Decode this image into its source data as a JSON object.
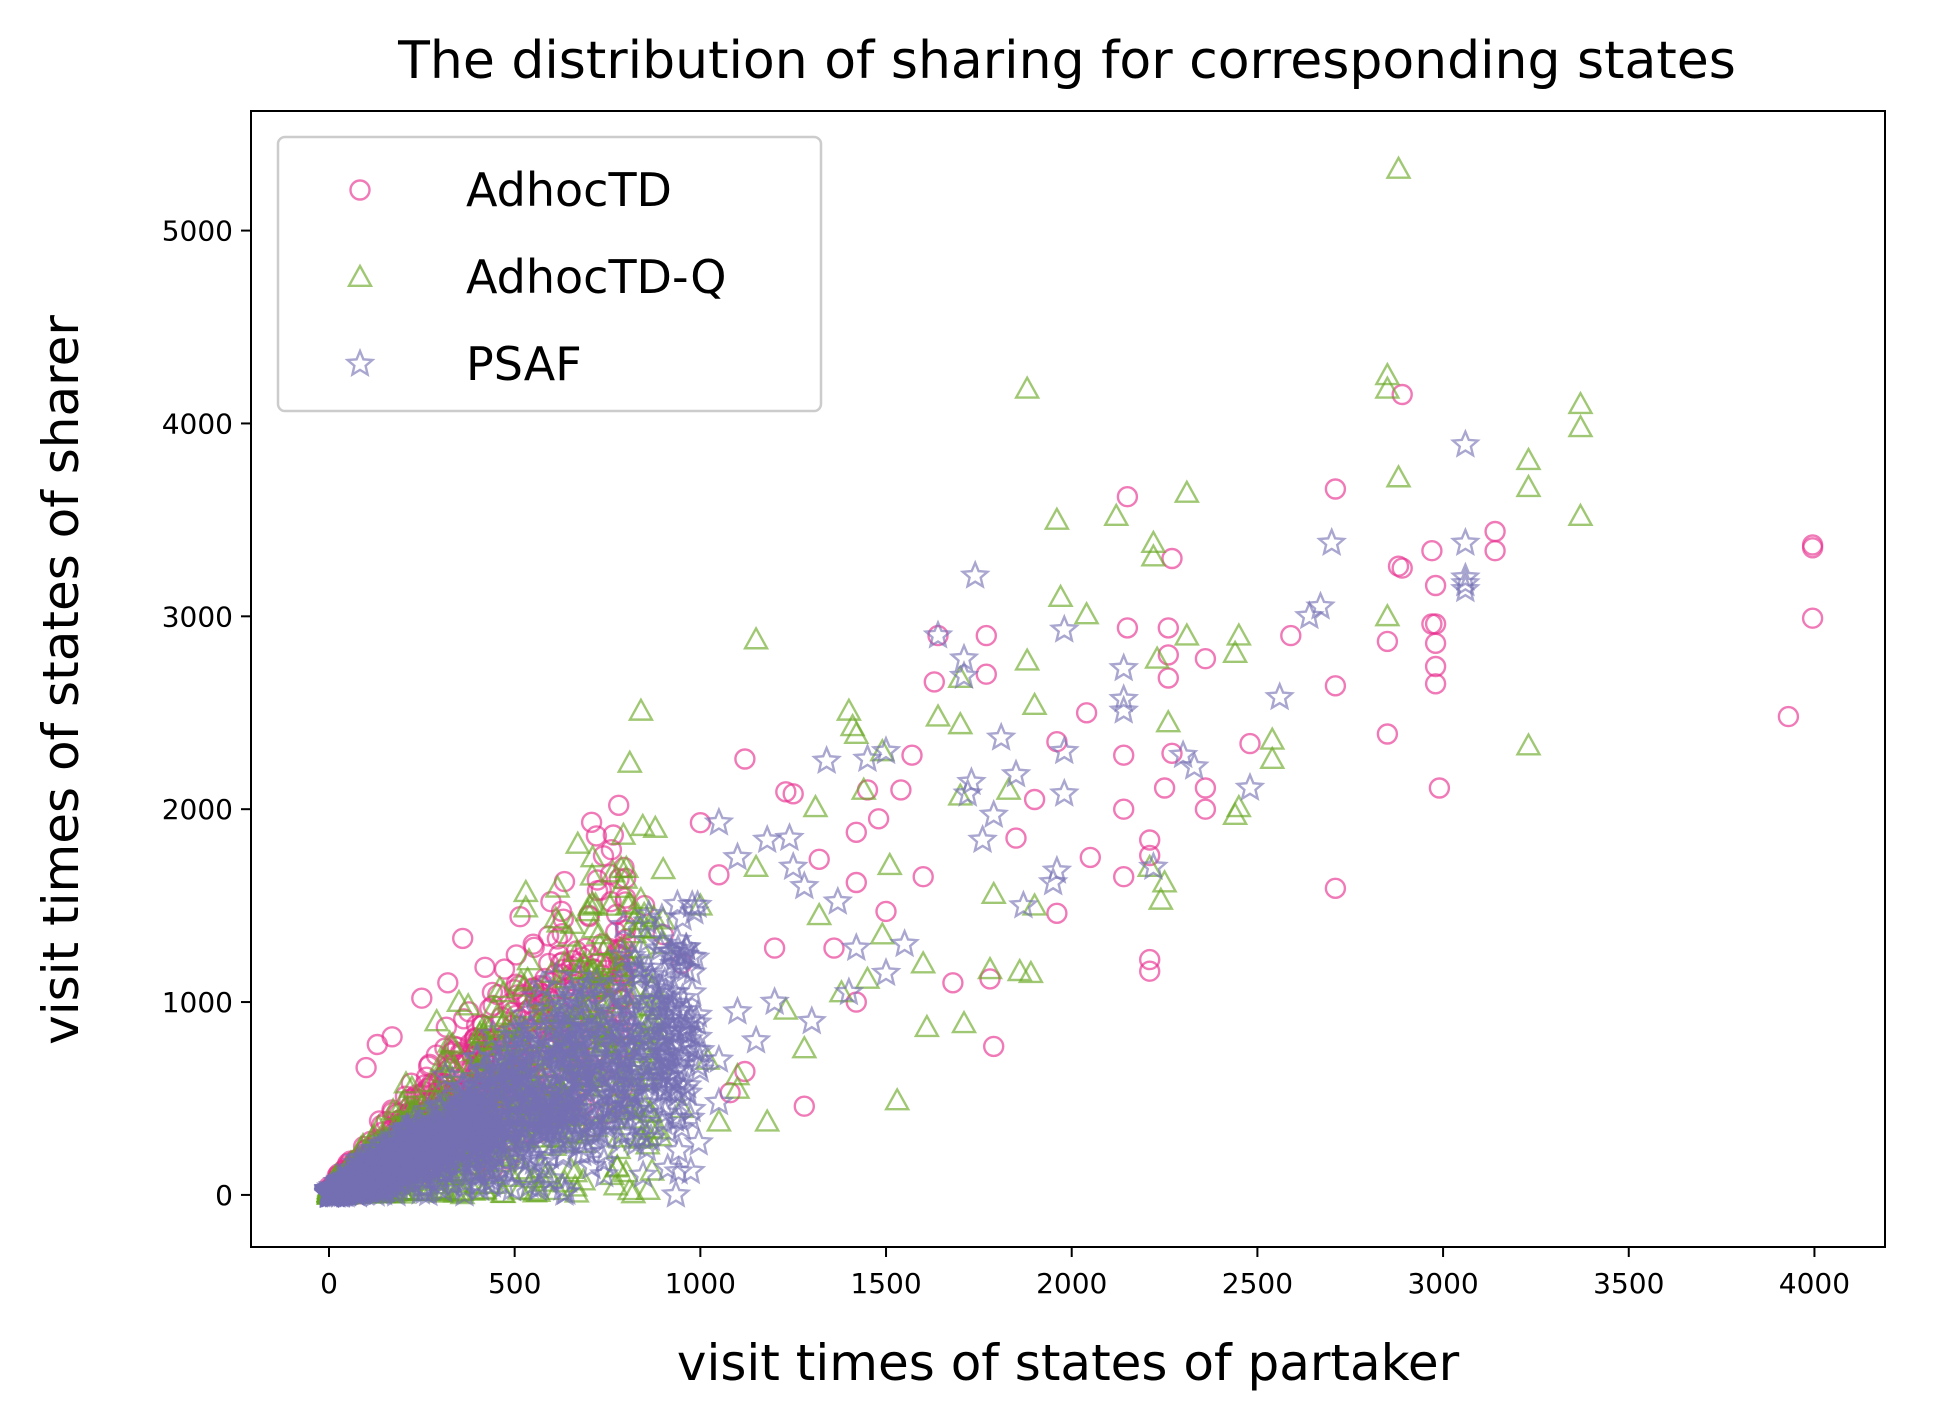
{
  "chart_data": {
    "type": "scatter",
    "title": "The distribution of sharing for corresponding states",
    "xlabel": "visit times of states of partaker",
    "ylabel": "visit times of states of sharer",
    "xlim": [
      -210,
      4190
    ],
    "ylim": [
      -270,
      5620
    ],
    "xticks": [
      0,
      500,
      1000,
      1500,
      2000,
      2500,
      3000,
      3500,
      4000
    ],
    "yticks": [
      0,
      1000,
      2000,
      3000,
      4000,
      5000
    ],
    "xtick_labels": [
      "0",
      "500",
      "1000",
      "1500",
      "2000",
      "2500",
      "3000",
      "3500",
      "4000"
    ],
    "ytick_labels": [
      "0",
      "1000",
      "2000",
      "3000",
      "4000",
      "5000"
    ],
    "grid": false,
    "legend_position": "top-left",
    "series": [
      {
        "name": "AdhocTD",
        "marker": "circle",
        "color": "#e7298a",
        "dense_cluster": {
          "x_range": [
            0,
            800
          ],
          "ratio": 1.5,
          "spread": 0.45,
          "count": 900
        },
        "points": [
          [
            3995,
            3370
          ],
          [
            3995,
            3355
          ],
          [
            3995,
            2990
          ],
          [
            3930,
            2480
          ],
          [
            3140,
            3440
          ],
          [
            3140,
            3340
          ],
          [
            2970,
            3340
          ],
          [
            2980,
            3160
          ],
          [
            2980,
            2960
          ],
          [
            2970,
            2960
          ],
          [
            2980,
            2860
          ],
          [
            2980,
            2740
          ],
          [
            2980,
            2650
          ],
          [
            2990,
            2110
          ],
          [
            2890,
            4150
          ],
          [
            2890,
            3250
          ],
          [
            2880,
            3260
          ],
          [
            2850,
            2870
          ],
          [
            2850,
            2390
          ],
          [
            2710,
            3660
          ],
          [
            2710,
            2640
          ],
          [
            2710,
            1590
          ],
          [
            2590,
            2900
          ],
          [
            2480,
            2340
          ],
          [
            2360,
            2780
          ],
          [
            2360,
            2110
          ],
          [
            2360,
            2000
          ],
          [
            2270,
            3300
          ],
          [
            2260,
            2940
          ],
          [
            2260,
            2800
          ],
          [
            2260,
            2680
          ],
          [
            2270,
            2290
          ],
          [
            2250,
            2110
          ],
          [
            2210,
            1840
          ],
          [
            2210,
            1760
          ],
          [
            2210,
            1220
          ],
          [
            2210,
            1160
          ],
          [
            2150,
            3620
          ],
          [
            2150,
            2940
          ],
          [
            2140,
            2280
          ],
          [
            2140,
            2000
          ],
          [
            2140,
            1650
          ],
          [
            2040,
            2500
          ],
          [
            2050,
            1750
          ],
          [
            1960,
            2350
          ],
          [
            1960,
            1460
          ],
          [
            1770,
            2900
          ],
          [
            1770,
            2700
          ],
          [
            1780,
            1120
          ],
          [
            1790,
            770
          ],
          [
            1640,
            2900
          ],
          [
            1630,
            2660
          ],
          [
            1570,
            2280
          ],
          [
            1540,
            2100
          ],
          [
            1480,
            1950
          ],
          [
            1450,
            2100
          ],
          [
            1420,
            1880
          ],
          [
            1250,
            2080
          ],
          [
            1230,
            2090
          ],
          [
            1120,
            2260
          ],
          [
            1050,
            1660
          ],
          [
            1000,
            1930
          ],
          [
            780,
            2020
          ],
          [
            550,
            1300
          ],
          [
            440,
            1050
          ],
          [
            360,
            1330
          ],
          [
            320,
            1100
          ],
          [
            170,
            820
          ],
          [
            130,
            780
          ],
          [
            100,
            660
          ],
          [
            1280,
            460
          ],
          [
            1120,
            640
          ],
          [
            1080,
            530
          ],
          [
            850,
            1500
          ],
          [
            900,
            1350
          ],
          [
            1360,
            1280
          ],
          [
            1420,
            1000
          ],
          [
            1500,
            1470
          ],
          [
            1600,
            1650
          ],
          [
            1680,
            1100
          ],
          [
            1850,
            1850
          ],
          [
            1900,
            2050
          ],
          [
            1320,
            1740
          ],
          [
            1420,
            1620
          ],
          [
            1200,
            1280
          ],
          [
            950,
            1200
          ],
          [
            700,
            1450
          ],
          [
            600,
            1100
          ],
          [
            420,
            1180
          ],
          [
            250,
            1020
          ]
        ]
      },
      {
        "name": "AdhocTD-Q",
        "marker": "triangle",
        "color": "#66a61e",
        "dense_cluster": {
          "x_range": [
            0,
            900
          ],
          "ratio": 1.05,
          "spread": 0.55,
          "count": 1000
        },
        "points": [
          [
            2880,
            5320
          ],
          [
            2850,
            4250
          ],
          [
            2850,
            4180
          ],
          [
            1880,
            4180
          ],
          [
            3370,
            4100
          ],
          [
            3370,
            3980
          ],
          [
            3230,
            3810
          ],
          [
            3230,
            3670
          ],
          [
            3370,
            3520
          ],
          [
            2880,
            3720
          ],
          [
            2310,
            3640
          ],
          [
            2220,
            3380
          ],
          [
            2220,
            3310
          ],
          [
            2120,
            3520
          ],
          [
            1960,
            3500
          ],
          [
            1970,
            3100
          ],
          [
            2040,
            3010
          ],
          [
            2850,
            3000
          ],
          [
            2450,
            2900
          ],
          [
            2440,
            2810
          ],
          [
            2310,
            2900
          ],
          [
            2230,
            2780
          ],
          [
            2260,
            2450
          ],
          [
            2540,
            2360
          ],
          [
            2540,
            2260
          ],
          [
            2450,
            2010
          ],
          [
            2440,
            1970
          ],
          [
            3230,
            2330
          ],
          [
            1150,
            2880
          ],
          [
            1880,
            2770
          ],
          [
            1900,
            2540
          ],
          [
            1700,
            2680
          ],
          [
            1640,
            2480
          ],
          [
            1700,
            2440
          ],
          [
            1400,
            2510
          ],
          [
            1410,
            2430
          ],
          [
            1420,
            2390
          ],
          [
            1490,
            2300
          ],
          [
            840,
            2510
          ],
          [
            810,
            2240
          ],
          [
            1310,
            2010
          ],
          [
            1440,
            2100
          ],
          [
            1700,
            2070
          ],
          [
            1830,
            2100
          ],
          [
            1510,
            1710
          ],
          [
            1790,
            1560
          ],
          [
            1900,
            1500
          ],
          [
            2250,
            1620
          ],
          [
            2240,
            1530
          ],
          [
            2210,
            1700
          ],
          [
            670,
            1820
          ],
          [
            710,
            1750
          ],
          [
            530,
            1570
          ],
          [
            530,
            1490
          ],
          [
            1150,
            1700
          ],
          [
            1490,
            1350
          ],
          [
            1860,
            1160
          ],
          [
            1890,
            1150
          ],
          [
            1780,
            1170
          ],
          [
            1710,
            890
          ],
          [
            1610,
            870
          ],
          [
            1530,
            490
          ],
          [
            1180,
            380
          ],
          [
            1050,
            380
          ],
          [
            950,
            450
          ],
          [
            1100,
            550
          ],
          [
            1020,
            700
          ],
          [
            1280,
            760
          ],
          [
            1100,
            620
          ],
          [
            1230,
            960
          ],
          [
            1380,
            1050
          ],
          [
            1600,
            1200
          ],
          [
            1450,
            1120
          ],
          [
            1320,
            1450
          ],
          [
            1000,
            1500
          ],
          [
            900,
            1300
          ],
          [
            750,
            1200
          ],
          [
            600,
            1150
          ],
          [
            470,
            1050
          ],
          [
            350,
            1000
          ],
          [
            290,
            900
          ],
          [
            450,
            800
          ]
        ]
      },
      {
        "name": "PSAF",
        "marker": "star",
        "color": "#7570b3",
        "dense_cluster": {
          "x_range": [
            0,
            1000
          ],
          "ratio": 0.92,
          "spread": 0.35,
          "count": 1400
        },
        "points": [
          [
            3060,
            3890
          ],
          [
            3060,
            3380
          ],
          [
            3060,
            3200
          ],
          [
            3060,
            3170
          ],
          [
            3060,
            3140
          ],
          [
            2700,
            3380
          ],
          [
            2670,
            3050
          ],
          [
            2640,
            3000
          ],
          [
            2560,
            2580
          ],
          [
            2480,
            2110
          ],
          [
            2330,
            2220
          ],
          [
            2300,
            2280
          ],
          [
            2140,
            2730
          ],
          [
            2140,
            2570
          ],
          [
            2140,
            2510
          ],
          [
            2220,
            1700
          ],
          [
            1980,
            2930
          ],
          [
            1980,
            2300
          ],
          [
            1980,
            2080
          ],
          [
            1960,
            1680
          ],
          [
            1950,
            1620
          ],
          [
            1870,
            1500
          ],
          [
            1850,
            2180
          ],
          [
            1810,
            2370
          ],
          [
            1790,
            1970
          ],
          [
            1760,
            1840
          ],
          [
            1740,
            3210
          ],
          [
            1710,
            2780
          ],
          [
            1710,
            2690
          ],
          [
            1730,
            2140
          ],
          [
            1720,
            2080
          ],
          [
            1640,
            2900
          ],
          [
            1500,
            2300
          ],
          [
            1450,
            2260
          ],
          [
            1340,
            2250
          ],
          [
            1240,
            1850
          ],
          [
            1280,
            1600
          ],
          [
            1180,
            1840
          ],
          [
            1050,
            1930
          ],
          [
            1100,
            1750
          ],
          [
            1250,
            1700
          ],
          [
            1370,
            1520
          ],
          [
            1420,
            1280
          ],
          [
            1550,
            1300
          ],
          [
            1500,
            1150
          ],
          [
            1400,
            1050
          ],
          [
            1300,
            900
          ],
          [
            1200,
            1000
          ],
          [
            1150,
            800
          ],
          [
            1050,
            700
          ],
          [
            1100,
            950
          ],
          [
            1000,
            750
          ],
          [
            950,
            350
          ],
          [
            1050,
            480
          ]
        ]
      }
    ]
  }
}
